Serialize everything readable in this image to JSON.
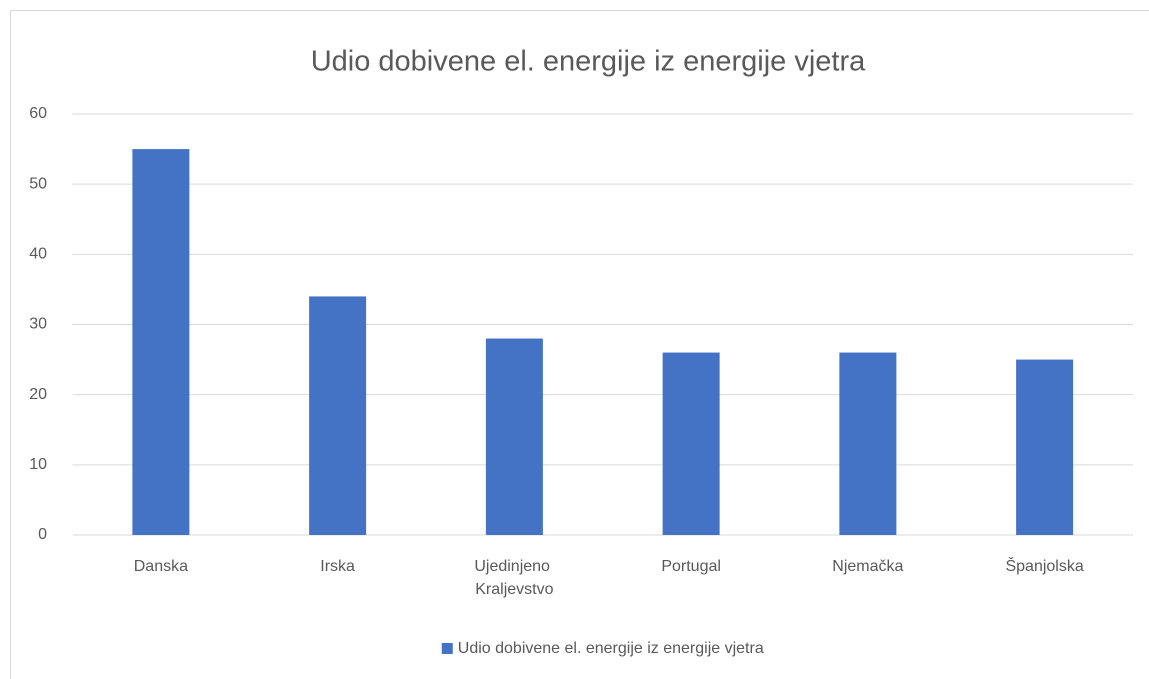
{
  "chart_data": {
    "type": "bar",
    "title": "Udio dobivene el. energije iz energije vjetra",
    "categories": [
      "Danska",
      "Irska",
      "Ujedinjeno Kraljevstvo",
      "Portugal",
      "Njemačka",
      "Španjolska"
    ],
    "series": [
      {
        "name": "Udio dobivene el. energije iz energije vjetra",
        "color": "#4472c4",
        "values": [
          55,
          34,
          28,
          26,
          26,
          25
        ]
      }
    ],
    "ylim": [
      0,
      60
    ],
    "yticks": [
      0,
      10,
      20,
      30,
      40,
      50,
      60
    ],
    "grid": true,
    "legend": "bottom"
  }
}
